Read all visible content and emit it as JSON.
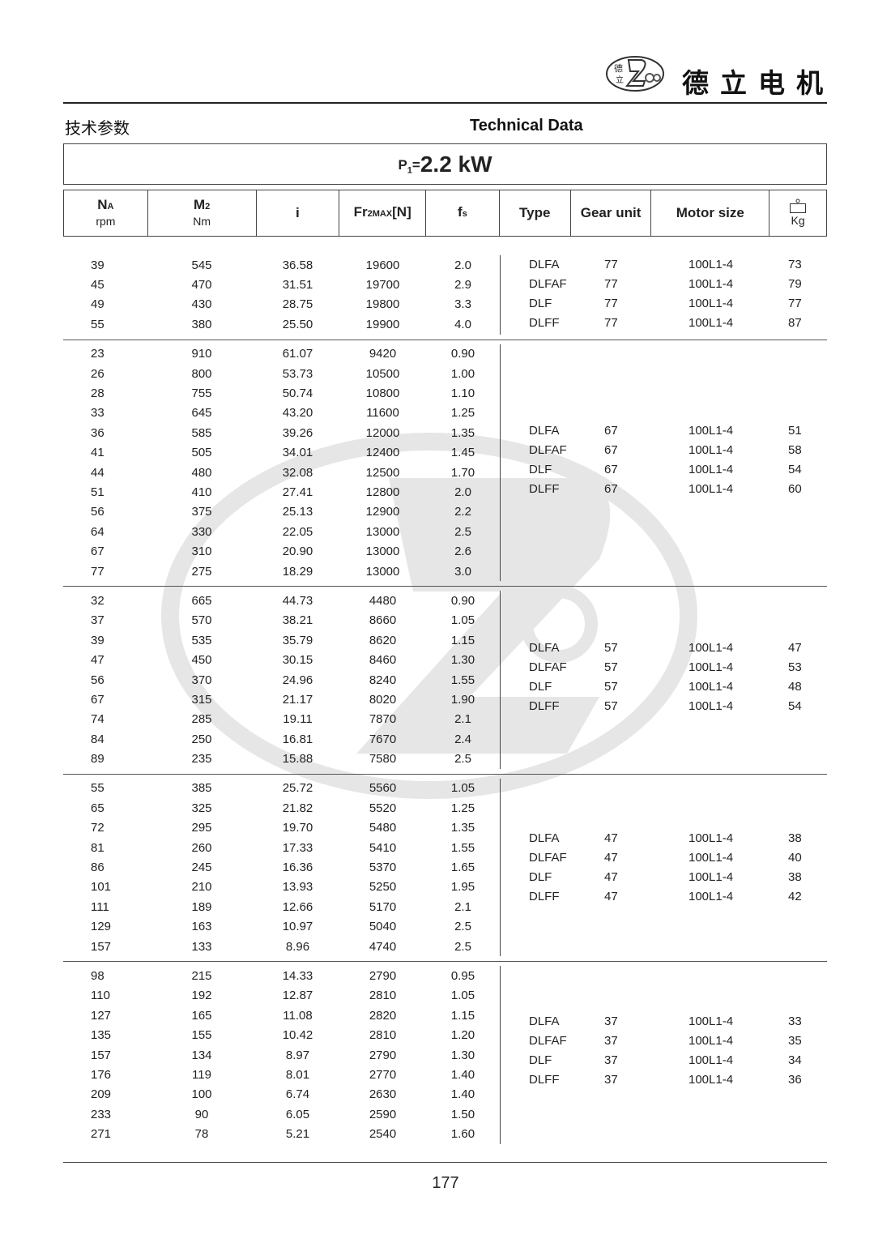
{
  "brand": {
    "name_cn": "德立电机",
    "logo_text": "De Li Gear Motor",
    "logo_chars": "德立"
  },
  "section": {
    "title_cn": "技术参数",
    "title_en": "Technical Data"
  },
  "power": {
    "symbol": "P",
    "sub": "1",
    "eq": "=",
    "value": "2.2 kW"
  },
  "headers": [
    {
      "main": "N",
      "sub": "A",
      "unit": "rpm"
    },
    {
      "main": "M",
      "sub": "2",
      "unit": "Nm"
    },
    {
      "main": "i",
      "sub": "",
      "unit": ""
    },
    {
      "main": "Fr",
      "sub": "2MAX",
      "tail": "[N]",
      "unit": ""
    },
    {
      "main": "f",
      "sub": "s",
      "unit": ""
    },
    {
      "main": "Type"
    },
    {
      "main": "Gear unit"
    },
    {
      "main": "Motor size"
    },
    {
      "main": "",
      "unit": "Kg",
      "icon": "weight-icon"
    }
  ],
  "groups": [
    {
      "rows": [
        [
          "39",
          "545",
          "36.58",
          "19600",
          "2.0"
        ],
        [
          "45",
          "470",
          "31.51",
          "19700",
          "2.9"
        ],
        [
          "49",
          "430",
          "28.75",
          "19800",
          "3.3"
        ],
        [
          "55",
          "380",
          "25.50",
          "19900",
          "4.0"
        ]
      ],
      "types": [
        [
          "DLFA",
          "77",
          "100L1-4",
          "73"
        ],
        [
          "DLFAF",
          "77",
          "100L1-4",
          "79"
        ],
        [
          "DLF",
          "77",
          "100L1-4",
          "77"
        ],
        [
          "DLFF",
          "77",
          "100L1-4",
          "87"
        ]
      ]
    },
    {
      "rows": [
        [
          "23",
          "910",
          "61.07",
          "9420",
          "0.90"
        ],
        [
          "26",
          "800",
          "53.73",
          "10500",
          "1.00"
        ],
        [
          "28",
          "755",
          "50.74",
          "10800",
          "1.10"
        ],
        [
          "33",
          "645",
          "43.20",
          "11600",
          "1.25"
        ],
        [
          "36",
          "585",
          "39.26",
          "12000",
          "1.35"
        ],
        [
          "41",
          "505",
          "34.01",
          "12400",
          "1.45"
        ],
        [
          "44",
          "480",
          "32.08",
          "12500",
          "1.70"
        ],
        [
          "51",
          "410",
          "27.41",
          "12800",
          "2.0"
        ],
        [
          "56",
          "375",
          "25.13",
          "12900",
          "2.2"
        ],
        [
          "64",
          "330",
          "22.05",
          "13000",
          "2.5"
        ],
        [
          "67",
          "310",
          "20.90",
          "13000",
          "2.6"
        ],
        [
          "77",
          "275",
          "18.29",
          "13000",
          "3.0"
        ]
      ],
      "types": [
        [
          "DLFA",
          "67",
          "100L1-4",
          "51"
        ],
        [
          "DLFAF",
          "67",
          "100L1-4",
          "58"
        ],
        [
          "DLF",
          "67",
          "100L1-4",
          "54"
        ],
        [
          "DLFF",
          "67",
          "100L1-4",
          "60"
        ]
      ]
    },
    {
      "rows": [
        [
          "32",
          "665",
          "44.73",
          "4480",
          "0.90"
        ],
        [
          "37",
          "570",
          "38.21",
          "8660",
          "1.05"
        ],
        [
          "39",
          "535",
          "35.79",
          "8620",
          "1.15"
        ],
        [
          "47",
          "450",
          "30.15",
          "8460",
          "1.30"
        ],
        [
          "56",
          "370",
          "24.96",
          "8240",
          "1.55"
        ],
        [
          "67",
          "315",
          "21.17",
          "8020",
          "1.90"
        ],
        [
          "74",
          "285",
          "19.11",
          "7870",
          "2.1"
        ],
        [
          "84",
          "250",
          "16.81",
          "7670",
          "2.4"
        ],
        [
          "89",
          "235",
          "15.88",
          "7580",
          "2.5"
        ]
      ],
      "types": [
        [
          "DLFA",
          "57",
          "100L1-4",
          "47"
        ],
        [
          "DLFAF",
          "57",
          "100L1-4",
          "53"
        ],
        [
          "DLF",
          "57",
          "100L1-4",
          "48"
        ],
        [
          "DLFF",
          "57",
          "100L1-4",
          "54"
        ]
      ]
    },
    {
      "rows": [
        [
          "55",
          "385",
          "25.72",
          "5560",
          "1.05"
        ],
        [
          "65",
          "325",
          "21.82",
          "5520",
          "1.25"
        ],
        [
          "72",
          "295",
          "19.70",
          "5480",
          "1.35"
        ],
        [
          "81",
          "260",
          "17.33",
          "5410",
          "1.55"
        ],
        [
          "86",
          "245",
          "16.36",
          "5370",
          "1.65"
        ],
        [
          "101",
          "210",
          "13.93",
          "5250",
          "1.95"
        ],
        [
          "111",
          "189",
          "12.66",
          "5170",
          "2.1"
        ],
        [
          "129",
          "163",
          "10.97",
          "5040",
          "2.5"
        ],
        [
          "157",
          "133",
          "8.96",
          "4740",
          "2.5"
        ]
      ],
      "types": [
        [
          "DLFA",
          "47",
          "100L1-4",
          "38"
        ],
        [
          "DLFAF",
          "47",
          "100L1-4",
          "40"
        ],
        [
          "DLF",
          "47",
          "100L1-4",
          "38"
        ],
        [
          "DLFF",
          "47",
          "100L1-4",
          "42"
        ]
      ]
    },
    {
      "rows": [
        [
          "98",
          "215",
          "14.33",
          "2790",
          "0.95"
        ],
        [
          "110",
          "192",
          "12.87",
          "2810",
          "1.05"
        ],
        [
          "127",
          "165",
          "11.08",
          "2820",
          "1.15"
        ],
        [
          "135",
          "155",
          "10.42",
          "2810",
          "1.20"
        ],
        [
          "157",
          "134",
          "8.97",
          "2790",
          "1.30"
        ],
        [
          "176",
          "119",
          "8.01",
          "2770",
          "1.40"
        ],
        [
          "209",
          "100",
          "6.74",
          "2630",
          "1.40"
        ],
        [
          "233",
          "90",
          "6.05",
          "2590",
          "1.50"
        ],
        [
          "271",
          "78",
          "5.21",
          "2540",
          "1.60"
        ]
      ],
      "types": [
        [
          "DLFA",
          "37",
          "100L1-4",
          "33"
        ],
        [
          "DLFAF",
          "37",
          "100L1-4",
          "35"
        ],
        [
          "DLF",
          "37",
          "100L1-4",
          "34"
        ],
        [
          "DLFF",
          "37",
          "100L1-4",
          "36"
        ]
      ]
    }
  ],
  "page_number": "177"
}
